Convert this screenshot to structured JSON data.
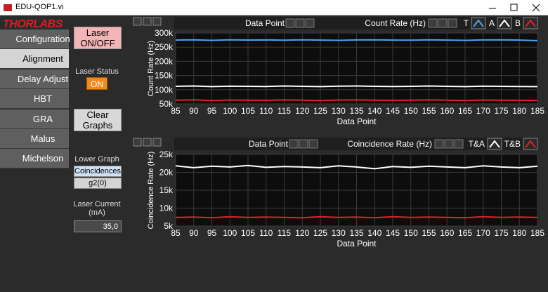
{
  "window": {
    "title": "EDU-QOP1.vi"
  },
  "logo": "THORLABS",
  "nav": {
    "items": [
      "Configuration",
      "Alignment",
      "Delay Adjust",
      "HBT",
      "GRA",
      "Malus",
      "Michelson"
    ],
    "selected": 1
  },
  "controls": {
    "laser_button": "Laser ON/OFF",
    "laser_status_label": "Laser Status",
    "laser_status": "ON",
    "clear_button": "Clear Graphs",
    "lower_graph_label": "Lower Graph",
    "lower_graph_options": [
      "Coincidences",
      "g2(0)"
    ],
    "lower_graph_selected": 0,
    "laser_current_label": "Laser Current (mA)",
    "laser_current": "35,0"
  },
  "graphs": [
    {
      "type": "line",
      "x_label": "Data Point",
      "y_label": "Count Rate (Hz)",
      "xlim": [
        85,
        185
      ],
      "xticks": [
        85,
        90,
        95,
        100,
        105,
        110,
        115,
        120,
        125,
        130,
        135,
        140,
        145,
        150,
        155,
        160,
        165,
        170,
        175,
        180,
        185
      ],
      "ylim": [
        50000,
        300000
      ],
      "yticks": [
        {
          "value": 50000,
          "label": "50k"
        },
        {
          "value": 100000,
          "label": "100k"
        },
        {
          "value": 150000,
          "label": "150k"
        },
        {
          "value": 200000,
          "label": "200k"
        },
        {
          "value": 250000,
          "label": "250k"
        },
        {
          "value": 300000,
          "label": "300k"
        }
      ],
      "grid": true,
      "x": [
        85,
        90,
        95,
        100,
        105,
        110,
        115,
        120,
        125,
        130,
        135,
        140,
        145,
        150,
        155,
        160,
        165,
        170,
        175,
        180,
        185
      ],
      "series": [
        {
          "name": "T",
          "color": "#4aa3f0",
          "values": [
            275000,
            276000,
            274000,
            276000,
            275000,
            275500,
            274500,
            276000,
            275000,
            274000,
            275500,
            276000,
            275000,
            274500,
            276000,
            275000,
            274000,
            275500,
            276000,
            275000,
            273000
          ]
        },
        {
          "name": "A",
          "color": "#ffffff",
          "values": [
            112000,
            113000,
            111000,
            112500,
            112000,
            111500,
            113000,
            112000,
            111000,
            112500,
            113000,
            112000,
            111500,
            112000,
            113000,
            112000,
            111000,
            112500,
            112000,
            111500,
            111000
          ]
        },
        {
          "name": "B",
          "color": "#e0202a",
          "values": [
            63000,
            64000,
            62000,
            63500,
            63000,
            62500,
            64000,
            63000,
            62000,
            63500,
            64000,
            63000,
            62500,
            63000,
            64000,
            63000,
            62000,
            63500,
            63000,
            62500,
            62000
          ]
        }
      ]
    },
    {
      "type": "line",
      "x_label": "Data Point",
      "y_label": "Coincidence Rate (Hz)",
      "xlim": [
        85,
        185
      ],
      "xticks": [
        85,
        90,
        95,
        100,
        105,
        110,
        115,
        120,
        125,
        130,
        135,
        140,
        145,
        150,
        155,
        160,
        165,
        170,
        175,
        180,
        185
      ],
      "ylim": [
        5000,
        25000
      ],
      "yticks": [
        {
          "value": 5000,
          "label": "5k"
        },
        {
          "value": 10000,
          "label": "10k"
        },
        {
          "value": 15000,
          "label": "15k"
        },
        {
          "value": 20000,
          "label": "20k"
        },
        {
          "value": 25000,
          "label": "25k"
        }
      ],
      "grid": true,
      "x": [
        85,
        90,
        95,
        100,
        105,
        110,
        115,
        120,
        125,
        130,
        135,
        140,
        145,
        150,
        155,
        160,
        165,
        170,
        175,
        180,
        185
      ],
      "series": [
        {
          "name": "T&A",
          "color": "#ffffff",
          "values": [
            21800,
            21300,
            21700,
            21500,
            21900,
            21400,
            21600,
            21500,
            21300,
            21800,
            21500,
            21000,
            21600,
            21400,
            21700,
            21500,
            21300,
            21800,
            21500,
            21300,
            21700
          ]
        },
        {
          "name": "T&B",
          "color": "#e0202a",
          "values": [
            7400,
            7500,
            7300,
            7600,
            7400,
            7500,
            7400,
            7300,
            7600,
            7400,
            7500,
            7300,
            7600,
            7400,
            7500,
            7400,
            7300,
            7600,
            7400,
            7500,
            7400
          ]
        }
      ]
    }
  ]
}
